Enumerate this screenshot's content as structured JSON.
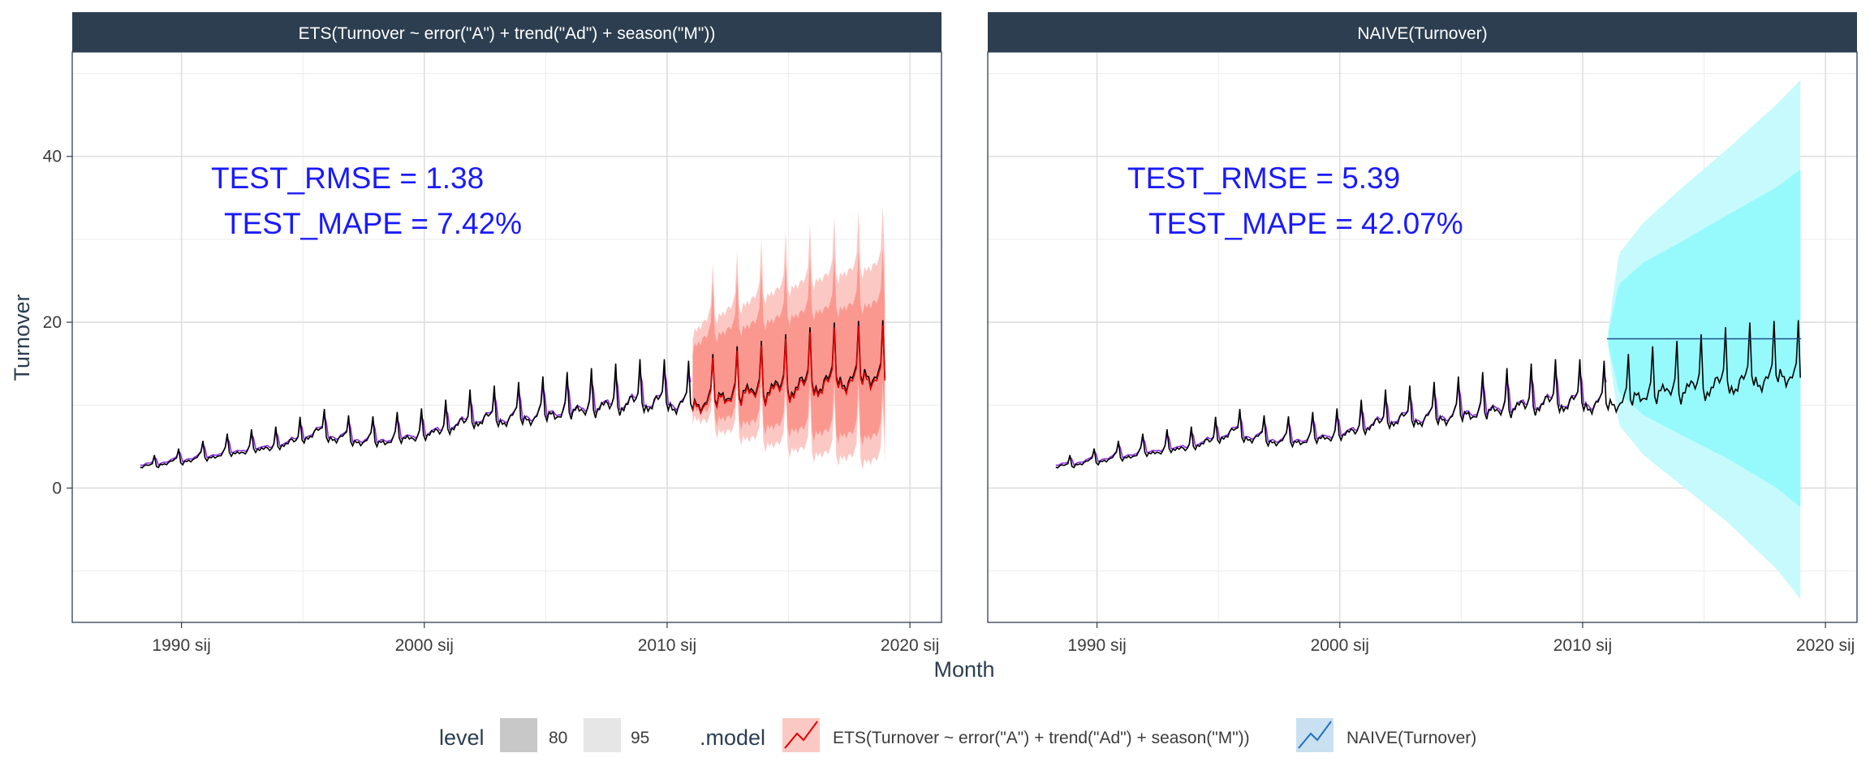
{
  "chart_data": {
    "type": "line",
    "xlabel": "Month",
    "ylabel": "Turnover",
    "ylim": [
      -16.2,
      52.6
    ],
    "xlim": [
      1985.5,
      2021.3
    ],
    "x_ticks": [
      1990,
      2000,
      2010,
      2020
    ],
    "x_tick_labels": [
      "1990 sij",
      "2000 sij",
      "2010 sij",
      "2020 sij"
    ],
    "y_ticks": [
      0,
      20,
      40
    ],
    "y_tick_labels": [
      "0",
      "20",
      "40"
    ],
    "grid": true,
    "legend_position": "bottom",
    "train_end": 2011.0,
    "data_start": 1988.3,
    "data_end": 2019.0,
    "actual_anchors": {
      "x": [
        1988.3,
        1990,
        1992,
        1994,
        1995.7,
        1996.4,
        1998,
        2000,
        2002,
        2004,
        2006,
        2008,
        2009,
        2011,
        2013,
        2015,
        2017,
        2019
      ],
      "y": [
        2.6,
        3.4,
        4.4,
        5.2,
        7.0,
        6.2,
        5.8,
        6.6,
        8.5,
        8.8,
        9.6,
        10.5,
        10.8,
        10.5,
        12.0,
        12.8,
        13.6,
        14.3
      ]
    },
    "panels": [
      {
        "strip": "ETS(Turnover ~ error(\"A\") + trend(\"Ad\") + season(\"M\"))",
        "annotation_line1": "TEST_RMSE = 1.38",
        "annotation_line2": "TEST_MAPE = 7.42%",
        "fitted_color": "#8a2be2",
        "actual_color": "#000000",
        "forecast_line_color": "#e00000",
        "band80_color": "#fa9890",
        "band95_color": "#fcc8c3",
        "forecast_kind": "seasonal",
        "forecast_band": {
          "x": [
            2011.0,
            2012,
            2014,
            2016,
            2018,
            2019.0
          ],
          "lo95": [
            9.5,
            7.8,
            6.2,
            5.0,
            4.2,
            3.8
          ],
          "hi95": [
            19.5,
            21.5,
            24.0,
            25.8,
            27.2,
            27.7
          ],
          "lo80": [
            10.5,
            9.3,
            8.3,
            7.5,
            7.0,
            6.8
          ],
          "hi80": [
            17.8,
            19.3,
            20.8,
            22.0,
            22.8,
            23.0
          ]
        }
      },
      {
        "strip": "NAIVE(Turnover)",
        "annotation_line1": "TEST_RMSE = 5.39",
        "annotation_line2": "TEST_MAPE = 42.07%",
        "fitted_color": "#8a2be2",
        "actual_color": "#000000",
        "forecast_line_color": "#1f4e8c",
        "band80_color": "#96fafc",
        "band95_color": "#c7fafc",
        "forecast_kind": "flat",
        "forecast_value": 18.0,
        "forecast_band": {
          "x": [
            2011.0,
            2011.5,
            2012.5,
            2014,
            2016,
            2018,
            2019.0
          ],
          "lo95": [
            18.0,
            7.6,
            4.0,
            0.5,
            -4.2,
            -9.8,
            -13.5
          ],
          "hi95": [
            18.0,
            28.3,
            32.0,
            36.0,
            41.0,
            46.3,
            49.3
          ],
          "lo80": [
            18.0,
            11.5,
            8.8,
            6.5,
            3.5,
            0.0,
            -2.4
          ],
          "hi80": [
            18.0,
            24.6,
            27.2,
            29.6,
            33.0,
            36.3,
            38.5
          ]
        }
      }
    ],
    "legend": {
      "level_title": "level",
      "level_items": [
        "80",
        "95"
      ],
      "model_title": ".model",
      "model_items": [
        {
          "label": "ETS(Turnover ~ error(\"A\") + trend(\"Ad\") + season(\"M\"))",
          "line_color": "#e00000",
          "fill_color": "#fcc8c3"
        },
        {
          "label": "NAIVE(Turnover)",
          "line_color": "#1f6fbf",
          "fill_color": "#c8e0f0"
        }
      ]
    },
    "colors": {
      "strip_bg": "#2c3e50",
      "grid": "#dedede",
      "panel_border": "#2c3e50",
      "level80_swatch": "#c8c8c8",
      "level95_swatch": "#e6e6e6"
    }
  }
}
